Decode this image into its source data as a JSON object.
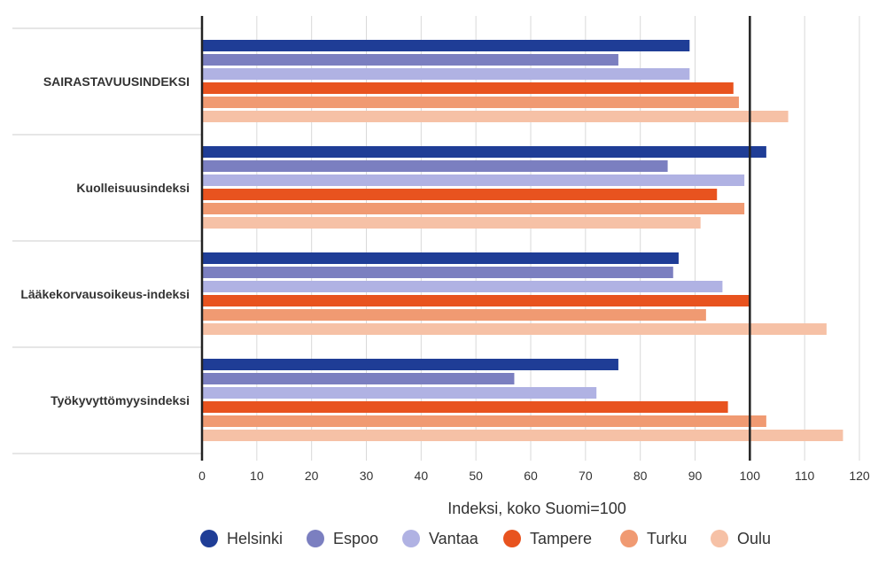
{
  "chart_data": {
    "type": "bar",
    "orientation": "horizontal",
    "categories": [
      "SAIRASTAVUUSINDEKSI",
      "Kuolleisuusindeksi",
      "Lääkekorvausoikeus-indeksi",
      "Työkyvyttömyysindeksi"
    ],
    "series": [
      {
        "name": "Helsinki",
        "color": "#1f3d96",
        "values": [
          89,
          103,
          87,
          76
        ]
      },
      {
        "name": "Espoo",
        "color": "#7b7fc0",
        "values": [
          76,
          85,
          86,
          57
        ]
      },
      {
        "name": "Vantaa",
        "color": "#b0b2e3",
        "values": [
          89,
          99,
          95,
          72
        ]
      },
      {
        "name": "Tampere",
        "color": "#e8531f",
        "values": [
          97,
          94,
          100,
          96
        ]
      },
      {
        "name": "Turku",
        "color": "#f09a72",
        "values": [
          98,
          99,
          92,
          103
        ]
      },
      {
        "name": "Oulu",
        "color": "#f6c1a6",
        "values": [
          107,
          91,
          114,
          117
        ]
      }
    ],
    "xlabel": "Indeksi, koko Suomi=100",
    "xlim": [
      0,
      120
    ],
    "xticks": [
      0,
      10,
      20,
      30,
      40,
      50,
      60,
      70,
      80,
      90,
      100,
      110,
      120
    ],
    "reference_line": 100,
    "grid": true,
    "legend": "bottom"
  }
}
